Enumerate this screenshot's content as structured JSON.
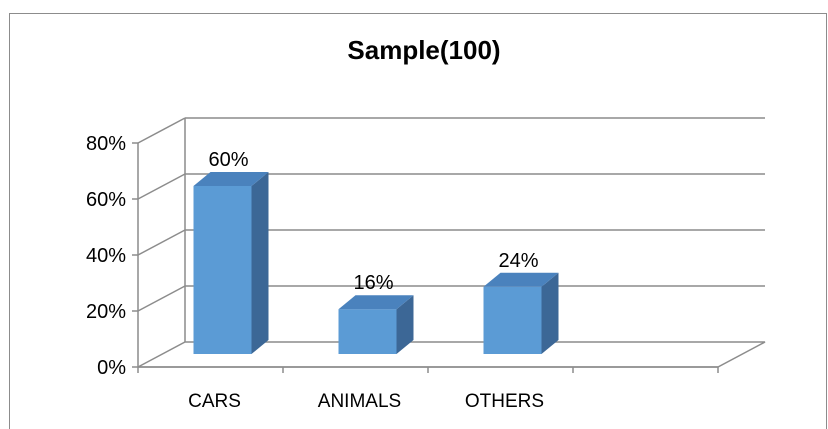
{
  "chart_data": {
    "type": "bar",
    "title": "Sample(100)",
    "categories": [
      "CARS",
      "ANIMALS",
      "OTHERS"
    ],
    "values": [
      60,
      16,
      24
    ],
    "data_labels": [
      "60%",
      "16%",
      "24%"
    ],
    "ylim": [
      0,
      80
    ],
    "yticks": [
      "0%",
      "20%",
      "40%",
      "60%",
      "80%"
    ],
    "grid": true,
    "legend": "none",
    "style": "3d-column",
    "bar_color": "#5b9bd5",
    "bar_side_color": "#3c6796",
    "bar_top_color": "#4a82bd",
    "grid_color": "#8c8c8c"
  }
}
